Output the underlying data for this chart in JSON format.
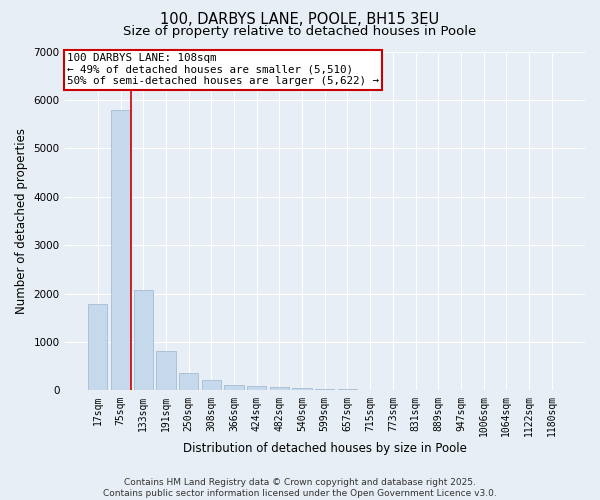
{
  "title1": "100, DARBYS LANE, POOLE, BH15 3EU",
  "title2": "Size of property relative to detached houses in Poole",
  "xlabel": "Distribution of detached houses by size in Poole",
  "ylabel": "Number of detached properties",
  "categories": [
    "17sqm",
    "75sqm",
    "133sqm",
    "191sqm",
    "250sqm",
    "308sqm",
    "366sqm",
    "424sqm",
    "482sqm",
    "540sqm",
    "599sqm",
    "657sqm",
    "715sqm",
    "773sqm",
    "831sqm",
    "889sqm",
    "947sqm",
    "1006sqm",
    "1064sqm",
    "1122sqm",
    "1180sqm"
  ],
  "values": [
    1780,
    5800,
    2080,
    820,
    360,
    210,
    120,
    90,
    80,
    55,
    30,
    20,
    15,
    10,
    7,
    5,
    5,
    5,
    3,
    3,
    2
  ],
  "bar_color": "#c6d9ec",
  "bar_edge_color": "#9ab5cf",
  "bg_color": "#e8eef5",
  "grid_color": "#ffffff",
  "vline_color": "#cc0000",
  "vline_x": 1.45,
  "annotation_text": "100 DARBYS LANE: 108sqm\n← 49% of detached houses are smaller (5,510)\n50% of semi-detached houses are larger (5,622) →",
  "annotation_box_color": "#cc0000",
  "ylim": [
    0,
    7000
  ],
  "yticks": [
    0,
    1000,
    2000,
    3000,
    4000,
    5000,
    6000,
    7000
  ],
  "footer_text": "Contains HM Land Registry data © Crown copyright and database right 2025.\nContains public sector information licensed under the Open Government Licence v3.0.",
  "title_fontsize": 10.5,
  "subtitle_fontsize": 9.5,
  "tick_fontsize": 7,
  "ylabel_fontsize": 8.5,
  "xlabel_fontsize": 8.5,
  "footer_fontsize": 6.5
}
